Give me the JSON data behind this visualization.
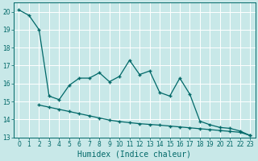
{
  "title": "",
  "xlabel": "Humidex (Indice chaleur)",
  "bg_color": "#c8e8e8",
  "grid_color": "#ffffff",
  "line_color": "#006868",
  "upper_x": [
    0,
    1,
    2,
    3,
    4,
    5,
    6,
    7,
    8,
    9,
    10,
    11,
    12,
    13,
    14,
    15,
    16,
    17,
    18,
    19,
    20,
    21,
    22,
    23
  ],
  "upper_y": [
    20.1,
    19.8,
    19.0,
    15.3,
    15.1,
    15.9,
    16.3,
    16.3,
    16.6,
    16.1,
    16.4,
    17.3,
    16.5,
    16.7,
    15.5,
    15.3,
    16.3,
    15.4,
    13.9,
    13.7,
    13.55,
    13.5,
    13.35,
    13.1
  ],
  "lower_x": [
    2,
    3,
    4,
    5,
    6,
    7,
    8,
    9,
    10,
    11,
    12,
    13,
    14,
    15,
    16,
    17,
    18,
    19,
    20,
    21,
    22,
    23
  ],
  "lower_y": [
    14.8,
    14.68,
    14.56,
    14.44,
    14.32,
    14.2,
    14.08,
    13.96,
    13.88,
    13.82,
    13.76,
    13.72,
    13.68,
    13.63,
    13.58,
    13.53,
    13.48,
    13.43,
    13.38,
    13.33,
    13.28,
    13.1
  ],
  "ylim": [
    13,
    20.5
  ],
  "yticks": [
    13,
    14,
    15,
    16,
    17,
    18,
    19,
    20
  ],
  "xlim": [
    -0.5,
    23.5
  ],
  "marker": "+",
  "markersize": 3.5,
  "linewidth": 0.9,
  "tick_fontsize": 5.5,
  "xlabel_fontsize": 7
}
